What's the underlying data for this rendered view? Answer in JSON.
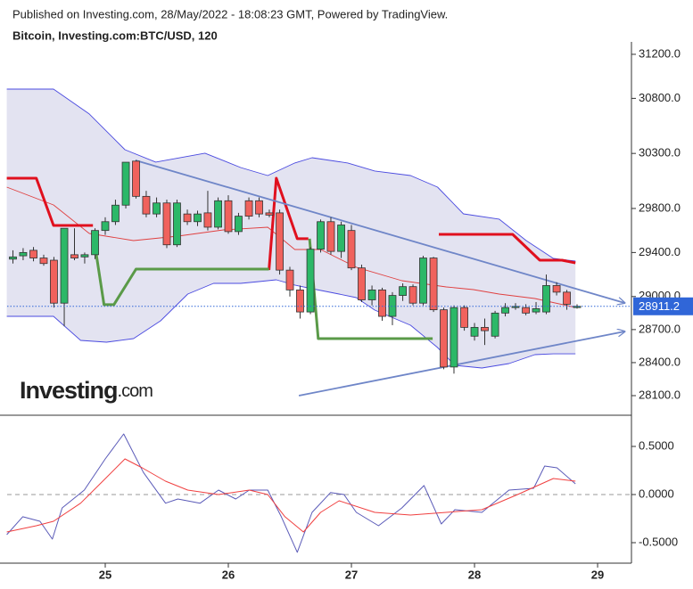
{
  "header": {
    "published": "Published on Investing.com, 28/May/2022 - 18:08:23 GMT, Powered by TradingView.",
    "symbol": "Bitcoin, Investing.com:BTC/USD, 120",
    "logo": "Investing",
    "logo_suffix": ".com"
  },
  "chart_data": [
    {
      "type": "candlestick",
      "xlim": [
        24.203,
        29.275
      ],
      "ylim": [
        27922,
        31313
      ],
      "yticks": [
        {
          "value": 31200,
          "label": "31200.0"
        },
        {
          "value": 30800,
          "label": "30800.0"
        },
        {
          "value": 30300,
          "label": "30300.0"
        },
        {
          "value": 29800,
          "label": "29800.0"
        },
        {
          "value": 29400,
          "label": "29400.0"
        },
        {
          "value": 29000,
          "label": "29000.0"
        },
        {
          "value": 28700,
          "label": "28700.0"
        },
        {
          "value": 28400,
          "label": "28400.0"
        },
        {
          "value": 28100,
          "label": "28100.0"
        }
      ],
      "up_color": "#2cb868",
      "down_color": "#f0625d",
      "x": [
        24.25,
        24.333,
        24.417,
        24.5,
        24.583,
        24.667,
        24.75,
        24.833,
        24.917,
        25,
        25.083,
        25.167,
        25.25,
        25.333,
        25.417,
        25.5,
        25.583,
        25.667,
        25.75,
        25.833,
        25.917,
        26,
        26.083,
        26.167,
        26.25,
        26.333,
        26.417,
        26.5,
        26.583,
        26.667,
        26.75,
        26.833,
        26.917,
        27,
        27.083,
        27.167,
        27.25,
        27.333,
        27.417,
        27.5,
        27.583,
        27.667,
        27.75,
        27.833,
        27.917,
        28,
        28.083,
        28.167,
        28.25,
        28.333,
        28.417,
        28.5,
        28.583,
        28.667,
        28.75,
        28.833
      ],
      "open": [
        29340,
        29370,
        29420,
        29350,
        29330,
        28940,
        29380,
        29360,
        29380,
        29600,
        29680,
        29830,
        30230,
        29910,
        29750,
        29850,
        29470,
        29750,
        29680,
        29760,
        29630,
        29870,
        29590,
        29870,
        29870,
        29760,
        29760,
        29240,
        29060,
        28860,
        29430,
        29680,
        29410,
        29600,
        29260,
        28970,
        29060,
        28820,
        29010,
        29090,
        28940,
        29350,
        28880,
        28360,
        28900,
        28640,
        28720,
        28640,
        28850,
        28900,
        28900,
        28860,
        28860,
        29100,
        29040,
        28900
      ],
      "high": [
        29420,
        29440,
        29450,
        29380,
        29360,
        29620,
        29620,
        29400,
        29620,
        29720,
        29880,
        30220,
        30240,
        29960,
        29900,
        29880,
        29880,
        29790,
        29780,
        29960,
        29900,
        29920,
        29760,
        29900,
        29900,
        29790,
        29790,
        29270,
        29100,
        29450,
        29700,
        29720,
        29680,
        29650,
        29290,
        29100,
        29080,
        29040,
        29120,
        29110,
        29370,
        29360,
        28900,
        28920,
        28920,
        28760,
        28800,
        28870,
        28940,
        28940,
        28930,
        28950,
        29200,
        29130,
        29060,
        28930
      ],
      "low": [
        29300,
        29330,
        29320,
        29280,
        28900,
        28730,
        29330,
        29300,
        29340,
        29560,
        29650,
        29800,
        29890,
        29720,
        29720,
        29440,
        29450,
        29650,
        29640,
        29600,
        29610,
        29570,
        29560,
        29700,
        29720,
        29720,
        29200,
        29000,
        28800,
        28840,
        29400,
        29380,
        29350,
        29240,
        28950,
        28920,
        28780,
        28740,
        28960,
        28920,
        28920,
        28860,
        28340,
        28300,
        28690,
        28600,
        28560,
        28620,
        28820,
        28880,
        28830,
        28840,
        28840,
        29010,
        28880,
        28890
      ],
      "close": [
        29360,
        29400,
        29350,
        29300,
        28940,
        29620,
        29350,
        29380,
        29600,
        29680,
        29830,
        30220,
        29910,
        29750,
        29850,
        29470,
        29850,
        29680,
        29750,
        29630,
        29870,
        29590,
        29730,
        29730,
        29750,
        29740,
        29240,
        29060,
        28860,
        29430,
        29680,
        29410,
        29650,
        29260,
        28970,
        29060,
        28820,
        29010,
        29090,
        28940,
        29350,
        28880,
        28360,
        28900,
        28720,
        28720,
        28690,
        28850,
        28900,
        28910,
        28850,
        28890,
        29100,
        29040,
        28930,
        28911.2
      ],
      "band": {
        "fill": "#e3e3f1",
        "color": "#4a4ae0",
        "upper": {
          "x": [
            24.2,
            24.58,
            24.87,
            25.16,
            25.41,
            25.81,
            26.1,
            26.32,
            26.54,
            26.68,
            26.97,
            27.19,
            27.48,
            27.7,
            27.91,
            28.2,
            28.42,
            28.64,
            28.82
          ],
          "values": [
            30884,
            30884,
            30658,
            30334,
            30221,
            30302,
            30172,
            30099,
            30213,
            30261,
            30213,
            30140,
            30099,
            29994,
            29751,
            29703,
            29508,
            29346,
            29322
          ]
        },
        "lower": {
          "x": [
            24.2,
            24.58,
            24.8,
            25.01,
            25.23,
            25.45,
            25.67,
            25.88,
            26.1,
            26.25,
            26.39,
            26.54,
            26.68,
            26.9,
            27.04,
            27.19,
            27.48,
            27.7,
            27.84,
            28.06,
            28.28,
            28.49,
            28.64,
            28.82
          ],
          "values": [
            28820,
            28820,
            28602,
            28586,
            28618,
            28780,
            29023,
            29120,
            29120,
            29136,
            29152,
            29104,
            29071,
            29023,
            28990,
            28877,
            28739,
            28537,
            28375,
            28351,
            28391,
            28472,
            28480,
            28480
          ]
        }
      },
      "overlays": [
        {
          "color": "#e04040",
          "x": [
            24.2,
            24.58,
            24.87,
            25.23,
            25.59,
            25.96,
            26.32,
            26.54,
            26.75,
            27.04,
            27.41,
            27.77,
            27.99,
            28.2,
            28.49,
            28.82
          ],
          "values": [
            29994,
            29832,
            29573,
            29508,
            29549,
            29605,
            29630,
            29427,
            29427,
            29266,
            29144,
            29087,
            29063,
            29023,
            28982,
            28901
          ]
        },
        {
          "color": "#e0101e",
          "x": [
            24.2,
            24.44,
            24.58,
            24.9,
            25.0,
            26.33,
            26.39,
            26.56,
            26.65,
            27.0,
            27.71,
            28.31,
            28.53,
            28.71,
            28.82
          ],
          "values": [
            30075,
            30075,
            29646,
            29646,
            null,
            29241,
            30075,
            29525,
            29525,
            null,
            29565,
            29565,
            29330,
            29330,
            29306
          ]
        },
        {
          "color": "#5a9a48",
          "x": [
            24.91,
            24.99,
            25.07,
            25.25,
            26.33,
            26.5,
            26.66,
            26.73,
            27.66
          ],
          "values": [
            29508,
            28926,
            28926,
            29249,
            29249,
            null,
            29525,
            28618,
            28618
          ]
        }
      ],
      "trendlines": [
        {
          "color": "#6f86c8",
          "x": [
            25.247,
            29.22
          ],
          "values": [
            30237,
            28942
          ]
        },
        {
          "color": "#6f86c8",
          "x": [
            26.573,
            29.22
          ],
          "values": [
            28100,
            28683
          ]
        }
      ],
      "last_price": {
        "value": 28911.2,
        "color": "#3066d8"
      }
    },
    {
      "type": "line",
      "xlim": [
        24.203,
        29.275
      ],
      "ylim": [
        -0.713,
        0.824
      ],
      "xticks": [
        25,
        26,
        27,
        28,
        29
      ],
      "yticks": [
        {
          "value": 0.5,
          "label": "0.5000"
        },
        {
          "value": 0,
          "label": "0.0000"
        },
        {
          "value": -0.5,
          "label": "-0.5000"
        }
      ],
      "series": [
        {
          "color": "#5a5ab8",
          "x": [
            24.2,
            24.33,
            24.47,
            24.57,
            24.65,
            24.83,
            25.0,
            25.15,
            25.31,
            25.49,
            25.59,
            25.77,
            25.92,
            26.06,
            26.17,
            26.32,
            26.43,
            26.56,
            26.68,
            26.83,
            26.94,
            27.04,
            27.22,
            27.41,
            27.59,
            27.73,
            27.84,
            28.06,
            28.28,
            28.48,
            28.57,
            28.67,
            28.82
          ],
          "values": [
            -0.417,
            -0.231,
            -0.278,
            -0.463,
            -0.139,
            0.046,
            0.37,
            0.63,
            0.23,
            -0.09,
            -0.046,
            -0.09,
            0.046,
            -0.046,
            0.046,
            0.046,
            -0.231,
            -0.6,
            -0.185,
            0.02,
            0,
            -0.185,
            -0.324,
            -0.139,
            0.093,
            -0.306,
            -0.157,
            -0.185,
            0.046,
            0.065,
            0.296,
            0.278,
            0.111
          ]
        },
        {
          "color": "#f04040",
          "x": [
            24.2,
            24.44,
            24.58,
            24.8,
            24.98,
            25.16,
            25.3,
            25.49,
            25.67,
            25.92,
            26.17,
            26.32,
            26.46,
            26.61,
            26.75,
            26.9,
            27.19,
            27.48,
            27.77,
            28.06,
            28.35,
            28.64,
            28.82
          ],
          "values": [
            -0.389,
            -0.324,
            -0.278,
            -0.09,
            0.139,
            0.37,
            0.278,
            0.139,
            0.046,
            0,
            0.046,
            0,
            -0.231,
            -0.389,
            -0.185,
            -0.065,
            -0.185,
            -0.213,
            -0.185,
            -0.157,
            0,
            0.167,
            0.139
          ]
        }
      ]
    }
  ]
}
